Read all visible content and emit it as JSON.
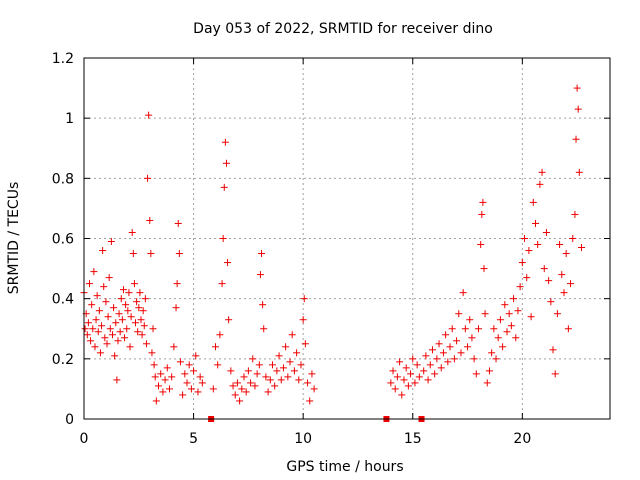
{
  "chart_data": {
    "type": "scatter",
    "title": "Day 053 of 2022, SRMTID for receiver dino",
    "xlabel": "GPS time / hours",
    "ylabel": "SRMTID / TECUs",
    "xlim": [
      0,
      24
    ],
    "ylim": [
      0,
      1.2
    ],
    "x_ticks": [
      0,
      5,
      10,
      15,
      20
    ],
    "x_tick_labels": [
      "0",
      "5",
      "10",
      "15",
      "20"
    ],
    "y_ticks": [
      0,
      0.2,
      0.4,
      0.6,
      0.8,
      1.0,
      1.2
    ],
    "y_tick_labels": [
      "0",
      "0.2",
      "0.4",
      "0.6",
      "0.8",
      "1",
      "1.2"
    ],
    "grid": true,
    "marker": "plus",
    "color": "#ee0000",
    "series": [
      {
        "name": "SRMTID",
        "points": [
          [
            0.0,
            0.42
          ],
          [
            0.05,
            0.3
          ],
          [
            0.1,
            0.35
          ],
          [
            0.15,
            0.28
          ],
          [
            0.2,
            0.32
          ],
          [
            0.25,
            0.45
          ],
          [
            0.3,
            0.26
          ],
          [
            0.35,
            0.38
          ],
          [
            0.4,
            0.3
          ],
          [
            0.45,
            0.49
          ],
          [
            0.5,
            0.24
          ],
          [
            0.55,
            0.33
          ],
          [
            0.6,
            0.41
          ],
          [
            0.65,
            0.29
          ],
          [
            0.7,
            0.36
          ],
          [
            0.75,
            0.22
          ],
          [
            0.8,
            0.31
          ],
          [
            0.85,
            0.56
          ],
          [
            0.9,
            0.44
          ],
          [
            0.95,
            0.27
          ],
          [
            1.0,
            0.39
          ],
          [
            1.05,
            0.25
          ],
          [
            1.1,
            0.34
          ],
          [
            1.15,
            0.47
          ],
          [
            1.2,
            0.3
          ],
          [
            1.25,
            0.59
          ],
          [
            1.3,
            0.28
          ],
          [
            1.35,
            0.37
          ],
          [
            1.4,
            0.21
          ],
          [
            1.45,
            0.32
          ],
          [
            1.5,
            0.13
          ],
          [
            1.55,
            0.26
          ],
          [
            1.6,
            0.35
          ],
          [
            1.65,
            0.29
          ],
          [
            1.7,
            0.4
          ],
          [
            1.75,
            0.33
          ],
          [
            1.8,
            0.43
          ],
          [
            1.85,
            0.27
          ],
          [
            1.9,
            0.38
          ],
          [
            1.95,
            0.3
          ],
          [
            2.0,
            0.36
          ],
          [
            2.05,
            0.42
          ],
          [
            2.1,
            0.24
          ],
          [
            2.15,
            0.34
          ],
          [
            2.2,
            0.62
          ],
          [
            2.25,
            0.55
          ],
          [
            2.3,
            0.45
          ],
          [
            2.35,
            0.32
          ],
          [
            2.4,
            0.39
          ],
          [
            2.45,
            0.29
          ],
          [
            2.5,
            0.37
          ],
          [
            2.55,
            0.42
          ],
          [
            2.6,
            0.33
          ],
          [
            2.65,
            0.28
          ],
          [
            2.7,
            0.36
          ],
          [
            2.75,
            0.31
          ],
          [
            2.8,
            0.4
          ],
          [
            2.85,
            0.25
          ],
          [
            2.9,
            0.8
          ],
          [
            2.95,
            1.01
          ],
          [
            3.0,
            0.66
          ],
          [
            3.05,
            0.55
          ],
          [
            3.1,
            0.22
          ],
          [
            3.15,
            0.3
          ],
          [
            3.2,
            0.18
          ],
          [
            3.25,
            0.14
          ],
          [
            3.3,
            0.06
          ],
          [
            3.4,
            0.11
          ],
          [
            3.5,
            0.15
          ],
          [
            3.6,
            0.09
          ],
          [
            3.7,
            0.13
          ],
          [
            3.8,
            0.17
          ],
          [
            3.9,
            0.1
          ],
          [
            4.0,
            0.14
          ],
          [
            4.1,
            0.24
          ],
          [
            4.2,
            0.37
          ],
          [
            4.25,
            0.45
          ],
          [
            4.3,
            0.65
          ],
          [
            4.35,
            0.55
          ],
          [
            4.4,
            0.19
          ],
          [
            4.5,
            0.08
          ],
          [
            4.6,
            0.15
          ],
          [
            4.7,
            0.12
          ],
          [
            4.8,
            0.18
          ],
          [
            4.9,
            0.1
          ],
          [
            5.0,
            0.16
          ],
          [
            5.1,
            0.21
          ],
          [
            5.2,
            0.09
          ],
          [
            5.3,
            0.14
          ],
          [
            5.4,
            0.12
          ],
          [
            5.8,
            0.0
          ],
          [
            5.9,
            0.1
          ],
          [
            6.0,
            0.24
          ],
          [
            6.1,
            0.18
          ],
          [
            6.2,
            0.28
          ],
          [
            6.3,
            0.45
          ],
          [
            6.35,
            0.6
          ],
          [
            6.4,
            0.77
          ],
          [
            6.45,
            0.92
          ],
          [
            6.5,
            0.85
          ],
          [
            6.55,
            0.52
          ],
          [
            6.6,
            0.33
          ],
          [
            6.7,
            0.16
          ],
          [
            6.8,
            0.11
          ],
          [
            6.9,
            0.08
          ],
          [
            7.0,
            0.12
          ],
          [
            7.1,
            0.06
          ],
          [
            7.2,
            0.1
          ],
          [
            7.3,
            0.14
          ],
          [
            7.4,
            0.09
          ],
          [
            7.5,
            0.16
          ],
          [
            7.6,
            0.12
          ],
          [
            7.7,
            0.2
          ],
          [
            7.8,
            0.11
          ],
          [
            7.9,
            0.15
          ],
          [
            8.0,
            0.18
          ],
          [
            8.05,
            0.48
          ],
          [
            8.1,
            0.55
          ],
          [
            8.15,
            0.38
          ],
          [
            8.2,
            0.3
          ],
          [
            8.3,
            0.14
          ],
          [
            8.4,
            0.09
          ],
          [
            8.5,
            0.13
          ],
          [
            8.6,
            0.18
          ],
          [
            8.7,
            0.11
          ],
          [
            8.8,
            0.16
          ],
          [
            8.9,
            0.21
          ],
          [
            9.0,
            0.13
          ],
          [
            9.1,
            0.17
          ],
          [
            9.2,
            0.24
          ],
          [
            9.3,
            0.14
          ],
          [
            9.4,
            0.19
          ],
          [
            9.5,
            0.28
          ],
          [
            9.6,
            0.16
          ],
          [
            9.7,
            0.22
          ],
          [
            9.8,
            0.13
          ],
          [
            9.9,
            0.18
          ],
          [
            10.0,
            0.33
          ],
          [
            10.05,
            0.4
          ],
          [
            10.1,
            0.25
          ],
          [
            10.2,
            0.12
          ],
          [
            10.3,
            0.06
          ],
          [
            10.4,
            0.15
          ],
          [
            10.5,
            0.1
          ],
          [
            13.8,
            0.0
          ],
          [
            14.0,
            0.12
          ],
          [
            14.1,
            0.16
          ],
          [
            14.2,
            0.1
          ],
          [
            14.3,
            0.14
          ],
          [
            14.4,
            0.19
          ],
          [
            14.5,
            0.08
          ],
          [
            14.6,
            0.13
          ],
          [
            14.7,
            0.17
          ],
          [
            14.8,
            0.11
          ],
          [
            14.9,
            0.15
          ],
          [
            15.0,
            0.2
          ],
          [
            15.1,
            0.12
          ],
          [
            15.2,
            0.18
          ],
          [
            15.3,
            0.14
          ],
          [
            15.4,
            0.0
          ],
          [
            15.5,
            0.16
          ],
          [
            15.6,
            0.21
          ],
          [
            15.7,
            0.13
          ],
          [
            15.8,
            0.18
          ],
          [
            15.9,
            0.23
          ],
          [
            16.0,
            0.15
          ],
          [
            16.1,
            0.2
          ],
          [
            16.2,
            0.25
          ],
          [
            16.3,
            0.17
          ],
          [
            16.4,
            0.22
          ],
          [
            16.5,
            0.28
          ],
          [
            16.6,
            0.19
          ],
          [
            16.7,
            0.24
          ],
          [
            16.8,
            0.3
          ],
          [
            16.9,
            0.2
          ],
          [
            17.0,
            0.26
          ],
          [
            17.1,
            0.35
          ],
          [
            17.2,
            0.22
          ],
          [
            17.3,
            0.42
          ],
          [
            17.4,
            0.3
          ],
          [
            17.5,
            0.24
          ],
          [
            17.6,
            0.33
          ],
          [
            17.7,
            0.27
          ],
          [
            17.8,
            0.2
          ],
          [
            17.9,
            0.15
          ],
          [
            18.0,
            0.3
          ],
          [
            18.1,
            0.58
          ],
          [
            18.15,
            0.68
          ],
          [
            18.2,
            0.72
          ],
          [
            18.25,
            0.5
          ],
          [
            18.3,
            0.35
          ],
          [
            18.4,
            0.12
          ],
          [
            18.5,
            0.16
          ],
          [
            18.6,
            0.22
          ],
          [
            18.7,
            0.3
          ],
          [
            18.8,
            0.2
          ],
          [
            18.9,
            0.27
          ],
          [
            19.0,
            0.33
          ],
          [
            19.1,
            0.24
          ],
          [
            19.2,
            0.38
          ],
          [
            19.3,
            0.29
          ],
          [
            19.4,
            0.35
          ],
          [
            19.5,
            0.31
          ],
          [
            19.6,
            0.4
          ],
          [
            19.7,
            0.27
          ],
          [
            19.8,
            0.36
          ],
          [
            19.9,
            0.44
          ],
          [
            20.0,
            0.52
          ],
          [
            20.1,
            0.6
          ],
          [
            20.2,
            0.47
          ],
          [
            20.3,
            0.56
          ],
          [
            20.4,
            0.34
          ],
          [
            20.5,
            0.72
          ],
          [
            20.6,
            0.65
          ],
          [
            20.7,
            0.58
          ],
          [
            20.8,
            0.78
          ],
          [
            20.9,
            0.82
          ],
          [
            21.0,
            0.5
          ],
          [
            21.1,
            0.62
          ],
          [
            21.2,
            0.46
          ],
          [
            21.3,
            0.39
          ],
          [
            21.4,
            0.23
          ],
          [
            21.5,
            0.15
          ],
          [
            21.6,
            0.35
          ],
          [
            21.7,
            0.58
          ],
          [
            21.8,
            0.48
          ],
          [
            21.9,
            0.42
          ],
          [
            22.0,
            0.55
          ],
          [
            22.1,
            0.3
          ],
          [
            22.2,
            0.45
          ],
          [
            22.3,
            0.6
          ],
          [
            22.4,
            0.68
          ],
          [
            22.45,
            0.93
          ],
          [
            22.5,
            1.1
          ],
          [
            22.55,
            1.03
          ],
          [
            22.6,
            0.82
          ],
          [
            22.7,
            0.57
          ]
        ]
      }
    ]
  }
}
